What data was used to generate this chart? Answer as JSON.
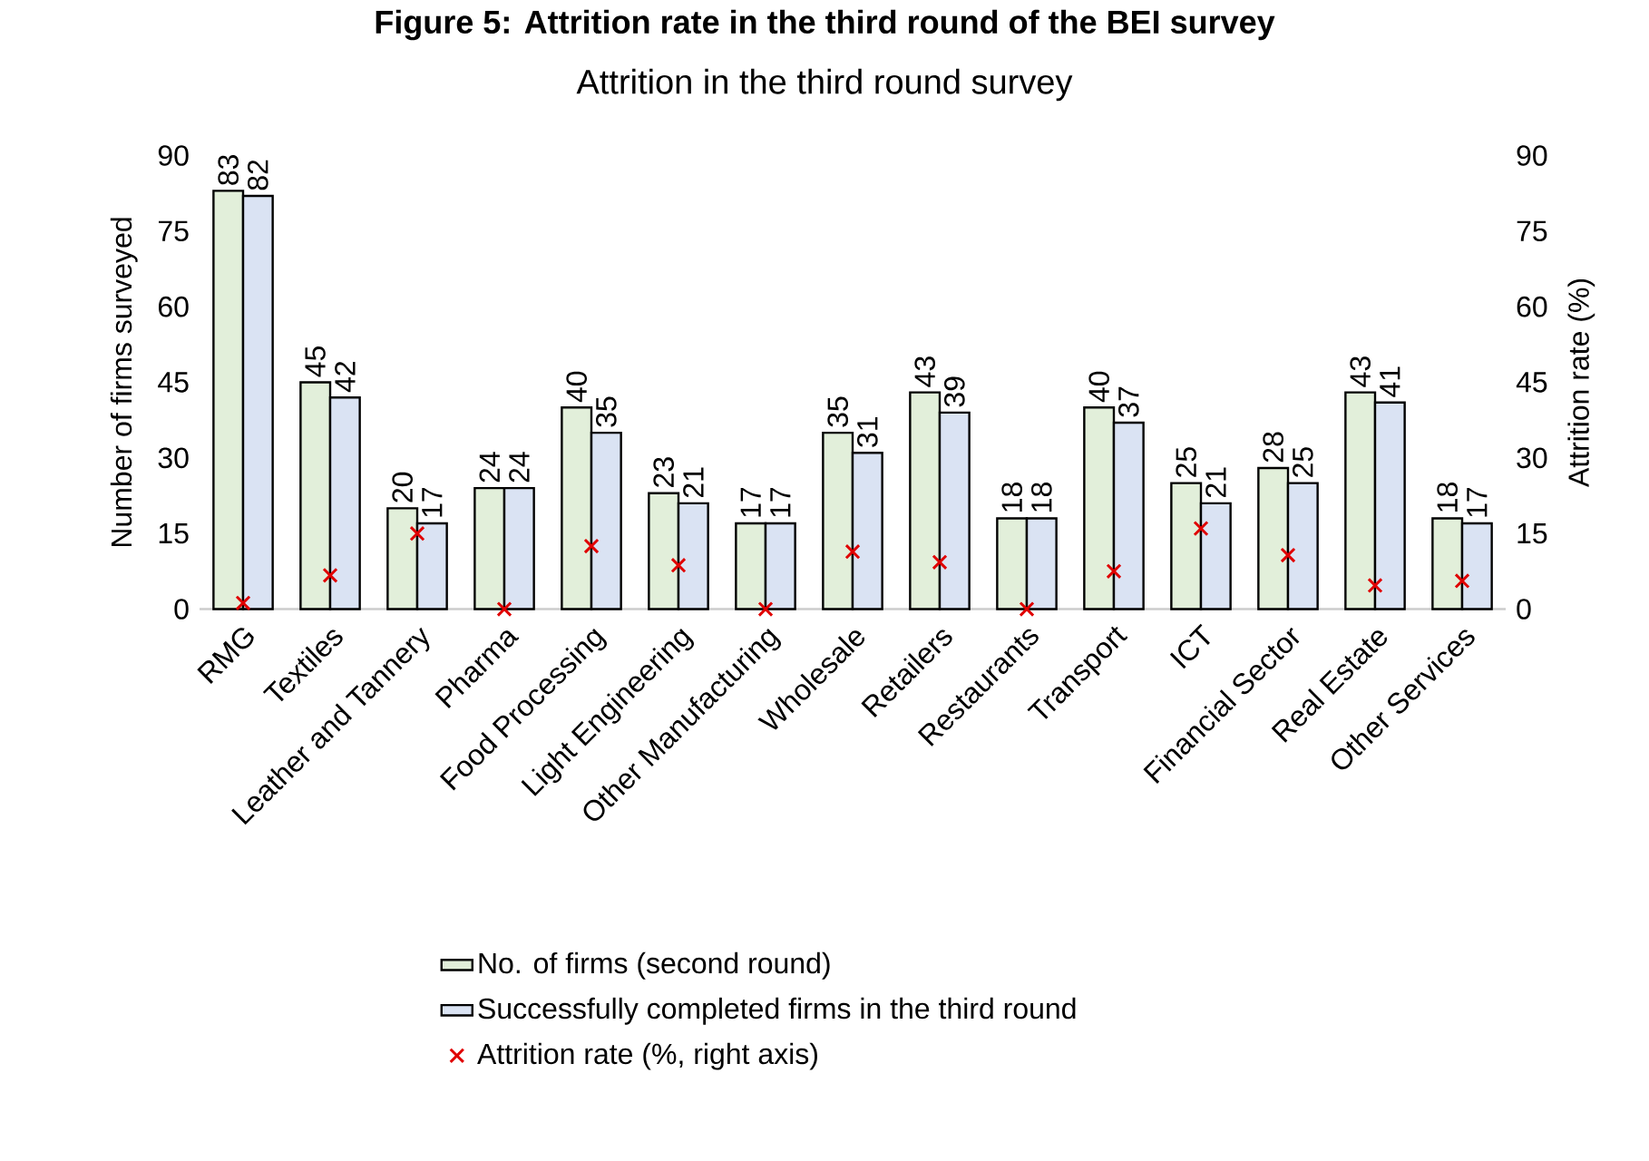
{
  "chart_data": {
    "type": "bar",
    "title": "Figure 5: Attrition rate in the third round of the BEI survey",
    "subtitle": "Attrition in the third round survey",
    "categories": [
      "RMG",
      "Textiles",
      "Leather and Tannery",
      "Pharma",
      "Food Processing",
      "Light Engineering",
      "Other Manufacturing",
      "Wholesale",
      "Retailers",
      "Restaurants",
      "Transport",
      "ICT",
      "Financial Sector",
      "Real Estate",
      "Other Services"
    ],
    "series": [
      {
        "name": "No. of firms (second round)",
        "color": "#e2efda",
        "values": [
          83,
          45,
          20,
          24,
          40,
          23,
          17,
          35,
          43,
          18,
          40,
          25,
          28,
          43,
          18
        ],
        "value_labels": [
          "83",
          "45",
          "20",
          "24",
          "40",
          "23",
          "17",
          "35",
          "43",
          "18",
          "40",
          "25",
          "28",
          "43",
          "18"
        ]
      },
      {
        "name": "Successfully completed firms in the third round",
        "color": "#dae3f3",
        "values": [
          82,
          42,
          17,
          24,
          35,
          21,
          17,
          31,
          39,
          18,
          37,
          21,
          25,
          41,
          17
        ],
        "value_labels": [
          "82",
          "42",
          "17",
          "24",
          "35",
          "21",
          "17",
          "31",
          "39",
          "18",
          "37",
          "21",
          "25",
          "41",
          "17"
        ]
      },
      {
        "name": "Attrition rate (%, right axis)",
        "type": "scatter",
        "axis": "y2",
        "color": "#e00000",
        "marker": "cross",
        "values": [
          1.2,
          6.7,
          15.0,
          0,
          12.5,
          8.7,
          0,
          11.4,
          9.3,
          0,
          7.5,
          16.0,
          10.7,
          4.7,
          5.6
        ]
      }
    ],
    "ylabel": "Number of firms surveyed",
    "y2label": "Attrition rate (%)",
    "ylim": [
      0,
      90
    ],
    "yticks": [
      0,
      15,
      30,
      45,
      60,
      75,
      90
    ],
    "y2lim": [
      0,
      90
    ],
    "y2ticks": [
      0,
      15,
      30,
      45,
      60,
      75,
      90
    ],
    "legend": "bottom"
  }
}
